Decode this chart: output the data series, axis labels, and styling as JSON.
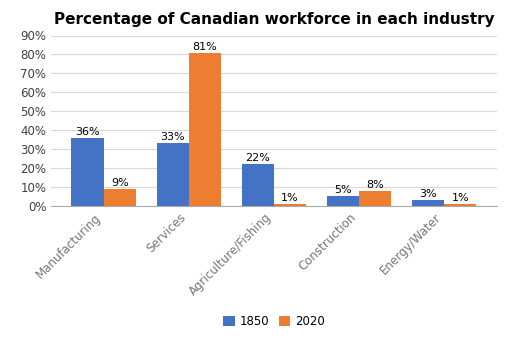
{
  "title": "Percentage of Canadian workforce in each industry",
  "categories": [
    "Manufacturing",
    "Services",
    "Agriculture/Fishing",
    "Construction",
    "Energy/Water"
  ],
  "values_1850": [
    36,
    33,
    22,
    5,
    3
  ],
  "values_2020": [
    9,
    81,
    1,
    8,
    1
  ],
  "color_1850": "#4472C4",
  "color_2020": "#ED7D31",
  "legend_labels": [
    "1850",
    "2020"
  ],
  "ylim": [
    0,
    90
  ],
  "yticks": [
    0,
    10,
    20,
    30,
    40,
    50,
    60,
    70,
    80,
    90
  ],
  "bar_width": 0.38,
  "title_fontsize": 11,
  "tick_fontsize": 8.5,
  "label_fontsize": 8,
  "background_color": "#FFFFFF",
  "grid_color": "#D9D9D9",
  "xtick_color": "#757575",
  "ytick_color": "#404040"
}
